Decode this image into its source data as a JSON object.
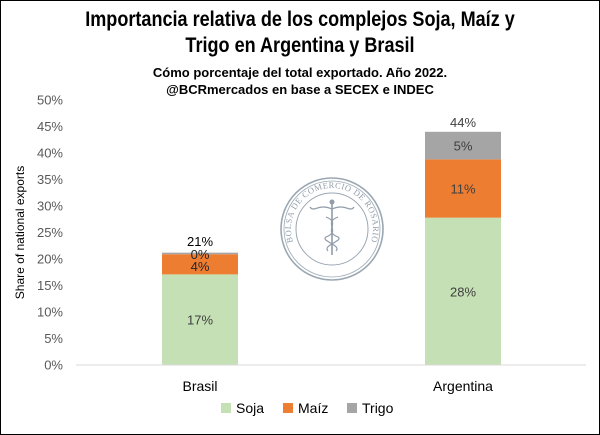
{
  "chart_data": {
    "type": "bar",
    "stacked": true,
    "title": [
      "Importancia relativa de los complejos Soja, Maíz y",
      "Trigo en Argentina y Brasil"
    ],
    "subtitle": [
      "Cómo porcentaje del total exportado. Año 2022.",
      "@BCRmercados en base a SECEX e INDEC"
    ],
    "ylabel": "Share of national exports",
    "xlabel": "",
    "categories": [
      "Brasil",
      "Argentina"
    ],
    "series": [
      {
        "name": "Soja",
        "values": [
          17.1,
          27.8
        ],
        "labels": [
          "17%",
          "28%"
        ],
        "color": "#c5e0b4"
      },
      {
        "name": "Maíz",
        "values": [
          3.8,
          11.0
        ],
        "labels": [
          "4%",
          "11%"
        ],
        "color": "#ed7d31"
      },
      {
        "name": "Trigo",
        "values": [
          0.3,
          5.2
        ],
        "labels": [
          "0%",
          "5%"
        ],
        "color": "#a5a5a5"
      }
    ],
    "totals": [
      "21%",
      "44%"
    ],
    "ylim": [
      0,
      50
    ],
    "yticks": [
      "0%",
      "5%",
      "10%",
      "15%",
      "20%",
      "25%",
      "30%",
      "35%",
      "40%",
      "45%",
      "50%"
    ],
    "grid": false,
    "legend_position": "bottom"
  },
  "watermark": "BOLSA DE COMERCIO DE ROSARIO"
}
